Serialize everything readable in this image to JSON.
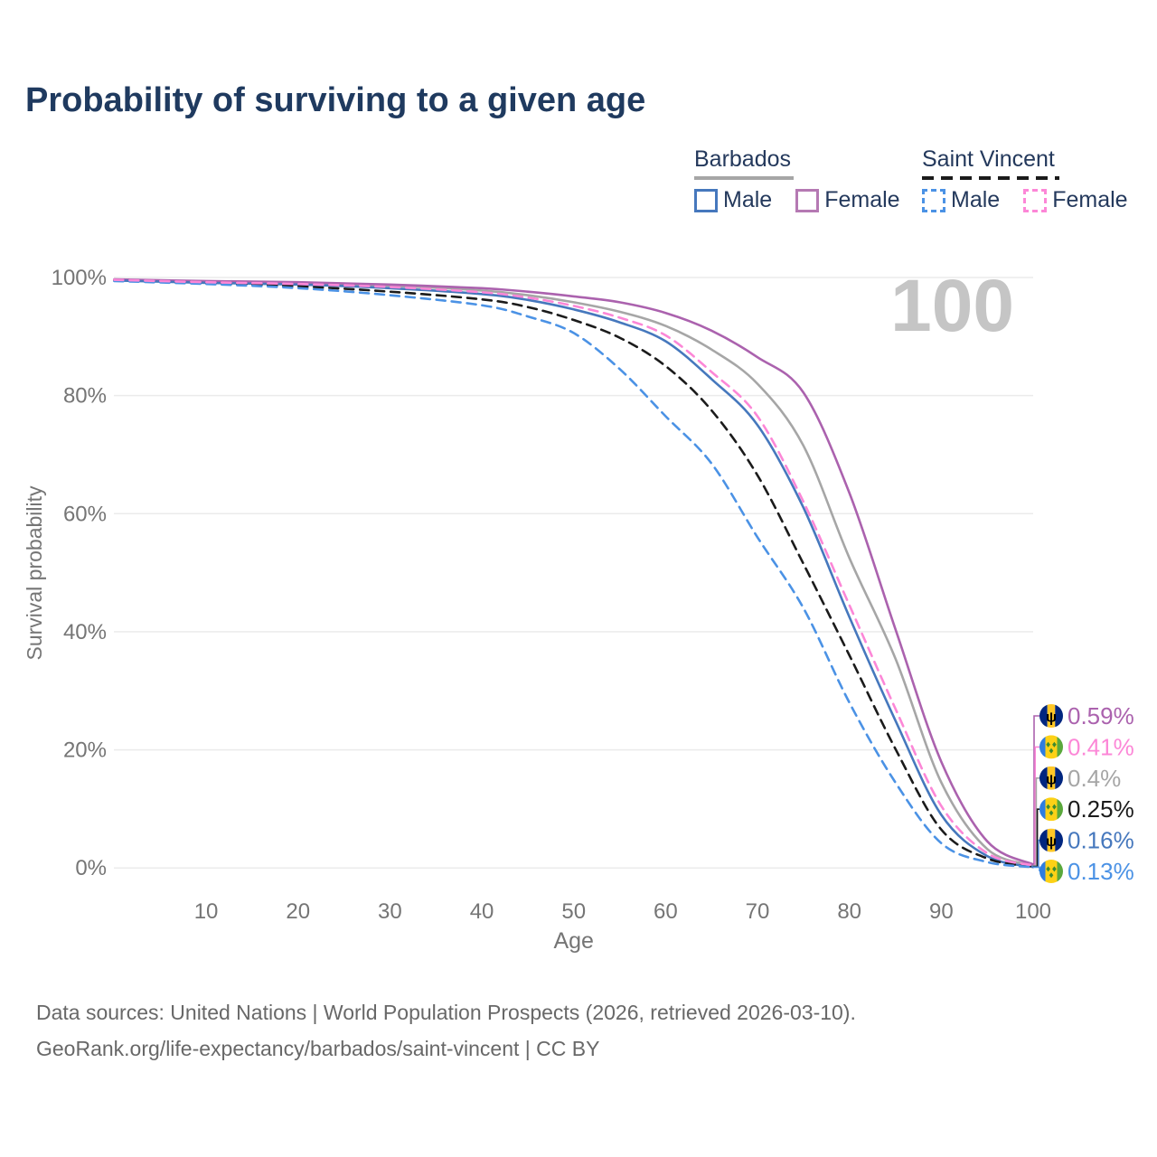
{
  "page": {
    "title": "Probability of surviving to a given age"
  },
  "legend": {
    "groups": [
      {
        "title": "Barbados",
        "underline_style": "solid",
        "underline_color": "#a6a6a6",
        "items": [
          {
            "label": "Male",
            "color": "#4678bd",
            "dashed": false
          },
          {
            "label": "Female",
            "color": "#b579b3",
            "dashed": false
          }
        ]
      },
      {
        "title": "Saint Vincent",
        "underline_style": "dashed",
        "underline_color": "#1b1b1b",
        "items": [
          {
            "label": "Male",
            "color": "#4b92e5",
            "dashed": true
          },
          {
            "label": "Female",
            "color": "#fc87d7",
            "dashed": true
          }
        ]
      }
    ]
  },
  "footer": {
    "line1": "Data sources: United Nations | World Population Prospects (2026, retrieved 2026-03-10).",
    "line2": "GeoRank.org/life-expectancy/barbados/saint-vincent | CC BY"
  },
  "colors": {
    "title": "#1f3a5f",
    "axis_text": "#757575",
    "grid": "#ebebeb",
    "watermark": "#c5c5c5",
    "footer": "#686868",
    "background": "#ffffff"
  },
  "flags": {
    "barbados": {
      "blue": "#00267f",
      "gold": "#ffc726",
      "trident": "#000000"
    },
    "saint_vincent": {
      "blue": "#2e7de0",
      "gold": "#fcd116",
      "green": "#5aa83c",
      "diamond": "#3d8a2e"
    }
  },
  "chart_data": {
    "type": "line",
    "title": "Probability of surviving to a given age",
    "xlabel": "Age",
    "ylabel": "Survival probability",
    "xlim": [
      0,
      100
    ],
    "ylim": [
      0,
      100
    ],
    "grid": "horizontal-only",
    "legend_position": "top-right",
    "watermark": "100",
    "x_ticks": [
      {
        "value": 10,
        "label": "10"
      },
      {
        "value": 20,
        "label": "20"
      },
      {
        "value": 30,
        "label": "30"
      },
      {
        "value": 40,
        "label": "40"
      },
      {
        "value": 50,
        "label": "50"
      },
      {
        "value": 60,
        "label": "60"
      },
      {
        "value": 70,
        "label": "70"
      },
      {
        "value": 80,
        "label": "80"
      },
      {
        "value": 90,
        "label": "90"
      },
      {
        "value": 100,
        "label": "100"
      }
    ],
    "y_ticks": [
      {
        "value": 0,
        "label": "0%"
      },
      {
        "value": 20,
        "label": "20%"
      },
      {
        "value": 40,
        "label": "40%"
      },
      {
        "value": 60,
        "label": "60%"
      },
      {
        "value": 80,
        "label": "80%"
      },
      {
        "value": 100,
        "label": "100%"
      }
    ],
    "ages": [
      0,
      10,
      20,
      30,
      40,
      45,
      50,
      55,
      60,
      65,
      70,
      75,
      80,
      85,
      90,
      95,
      100
    ],
    "series": [
      {
        "id": "barbados-total",
        "name": "Barbados Total",
        "flag": "barbados",
        "color": "#a6a6a6",
        "dash": null,
        "end_label": "0.4%",
        "values": [
          99.6,
          99.3,
          99.0,
          98.6,
          97.8,
          97.0,
          95.8,
          94.2,
          91.8,
          87.8,
          82.0,
          71.5,
          52.5,
          35.5,
          14.5,
          3.2,
          0.4
        ]
      },
      {
        "id": "barbados-female",
        "name": "Barbados Female",
        "flag": "barbados",
        "color": "#ab62ae",
        "dash": null,
        "end_label": "0.59%",
        "values": [
          99.7,
          99.4,
          99.2,
          98.8,
          98.2,
          97.6,
          96.8,
          95.8,
          94.0,
          91.0,
          86.5,
          80.5,
          63.5,
          40.5,
          18.0,
          4.5,
          0.59
        ]
      },
      {
        "id": "barbados-male",
        "name": "Barbados Male",
        "flag": "barbados",
        "color": "#4678bd",
        "dash": null,
        "end_label": "0.16%",
        "values": [
          99.5,
          99.1,
          98.8,
          98.2,
          97.2,
          96.2,
          94.6,
          92.4,
          89.2,
          82.8,
          75.0,
          61.0,
          42.5,
          25.0,
          9.0,
          2.0,
          0.16
        ]
      },
      {
        "id": "saint-vincent-total",
        "name": "Saint Vincent Total",
        "flag": "saint-vincent",
        "color": "#1b1b1b",
        "dash": "10 7",
        "end_label": "0.25%",
        "values": [
          99.5,
          99.0,
          98.5,
          97.6,
          96.3,
          95.0,
          92.8,
          89.8,
          85.0,
          77.5,
          66.5,
          51.5,
          36.0,
          20.2,
          6.5,
          1.6,
          0.25
        ]
      },
      {
        "id": "saint-vincent-male",
        "name": "Saint Vincent Male",
        "flag": "saint-vincent",
        "color": "#4b92e5",
        "dash": "10 7",
        "end_label": "0.13%",
        "values": [
          99.4,
          98.9,
          98.2,
          97.0,
          95.3,
          93.4,
          90.6,
          84.5,
          76.5,
          68.5,
          56.0,
          44.0,
          28.0,
          14.5,
          4.2,
          1.0,
          0.13
        ]
      },
      {
        "id": "saint-vincent-female",
        "name": "Saint Vincent Female",
        "flag": "saint-vincent",
        "color": "#fc87d7",
        "dash": "10 7",
        "end_label": "0.41%",
        "values": [
          99.6,
          99.2,
          98.9,
          98.4,
          97.5,
          96.6,
          95.2,
          93.2,
          90.2,
          84.0,
          76.5,
          62.0,
          44.5,
          27.0,
          10.5,
          2.5,
          0.41
        ]
      }
    ]
  }
}
